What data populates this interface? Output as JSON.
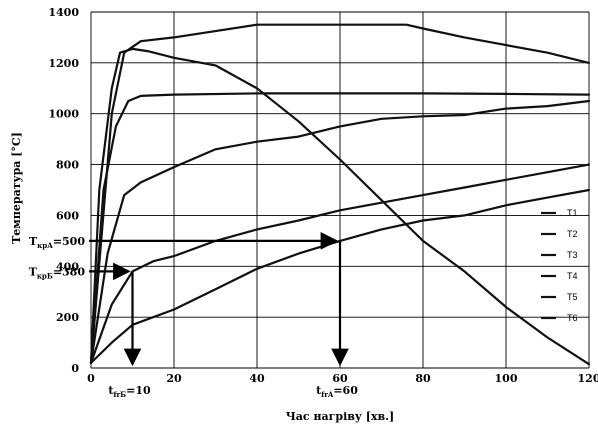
{
  "chart_data": {
    "type": "line",
    "title": "",
    "xlabel": "Час нагріву [хв.]",
    "ylabel": "Температура [°C]",
    "xlim": [
      0,
      120
    ],
    "ylim": [
      0,
      1400
    ],
    "xticks": [
      0,
      20,
      40,
      60,
      80,
      100,
      120
    ],
    "yticks": [
      0,
      200,
      400,
      600,
      800,
      1000,
      1200,
      1400
    ],
    "grid": true,
    "legend_position": "right",
    "series": [
      {
        "name": "T1",
        "x": [
          0,
          5,
          8,
          12,
          20,
          40,
          60,
          76,
          80,
          90,
          100,
          110,
          120
        ],
        "y": [
          20,
          1000,
          1240,
          1285,
          1300,
          1350,
          1350,
          1350,
          1335,
          1300,
          1270,
          1240,
          1200
        ]
      },
      {
        "name": "T2",
        "x": [
          0,
          2,
          5,
          7,
          10,
          14,
          20,
          30,
          40,
          50,
          60,
          70,
          80,
          90,
          100,
          110,
          120
        ],
        "y": [
          20,
          700,
          1100,
          1240,
          1255,
          1245,
          1220,
          1190,
          1100,
          970,
          820,
          660,
          500,
          380,
          240,
          120,
          15
        ]
      },
      {
        "name": "T3",
        "x": [
          0,
          3,
          6,
          9,
          12,
          20,
          40,
          60,
          80,
          100,
          120
        ],
        "y": [
          20,
          700,
          950,
          1050,
          1070,
          1075,
          1080,
          1080,
          1080,
          1078,
          1075
        ]
      },
      {
        "name": "T4",
        "x": [
          0,
          4,
          8,
          12,
          16,
          20,
          30,
          40,
          50,
          60,
          70,
          80,
          90,
          100,
          110,
          120
        ],
        "y": [
          20,
          450,
          680,
          730,
          760,
          790,
          860,
          890,
          910,
          950,
          980,
          990,
          995,
          1020,
          1030,
          1050
        ]
      },
      {
        "name": "T5",
        "x": [
          0,
          5,
          10,
          15,
          20,
          30,
          40,
          50,
          60,
          70,
          80,
          90,
          100,
          110,
          120
        ],
        "y": [
          20,
          250,
          380,
          420,
          440,
          500,
          545,
          580,
          620,
          650,
          680,
          710,
          740,
          770,
          800
        ]
      },
      {
        "name": "T6",
        "x": [
          0,
          5,
          10,
          20,
          30,
          40,
          50,
          60,
          70,
          80,
          90,
          100,
          110,
          120
        ],
        "y": [
          20,
          100,
          170,
          230,
          310,
          390,
          450,
          500,
          545,
          580,
          600,
          640,
          670,
          700
        ]
      }
    ],
    "annotations": [
      {
        "label_main": "T",
        "label_sub": "крА",
        "label_value": "=500",
        "y": 500,
        "x_to": 60
      },
      {
        "label_main": "T",
        "label_sub": "крБ",
        "label_value": "=380",
        "y": 380,
        "x_to": 10
      },
      {
        "label_main": "t",
        "label_sub": "frБ",
        "label_value": "=10",
        "x": 10
      },
      {
        "label_main": "t",
        "label_sub": "frA",
        "label_value": "=60",
        "x": 60
      }
    ]
  }
}
